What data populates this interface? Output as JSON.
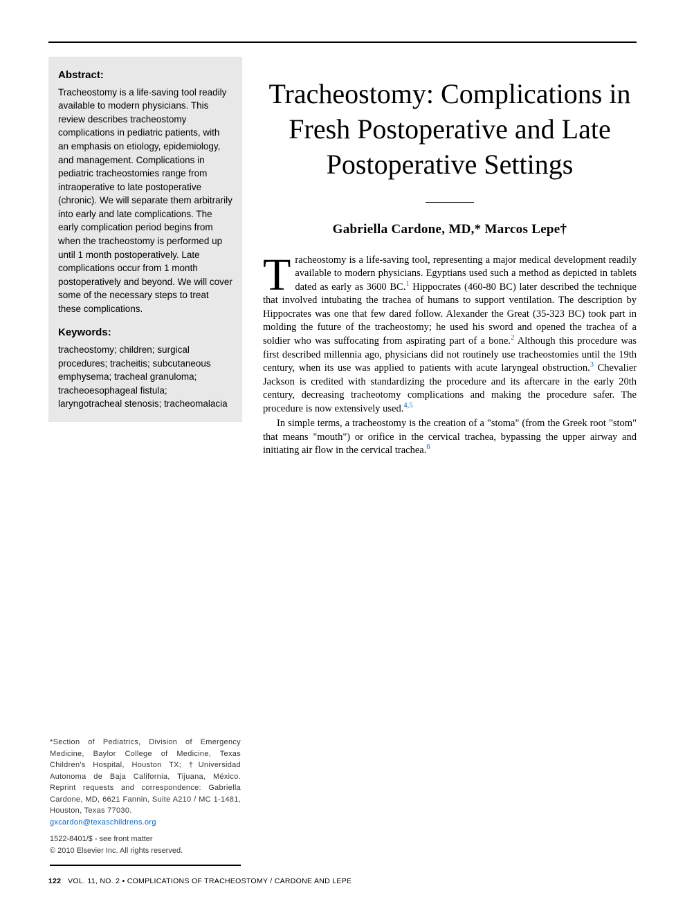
{
  "sidebar": {
    "abstract_heading": "Abstract:",
    "abstract_text": "Tracheostomy is a life-saving tool readily available to modern physicians. This review describes tracheostomy complications in pediatric patients, with an emphasis on etiology, epidemiology, and management. Complications in pediatric tracheostomies range from intraoperative to late postoperative (chronic). We will separate them arbitrarily into early and late complications. The early complication period begins from when the tracheostomy is performed up until 1 month postoperatively. Late complications occur from 1 month postoperatively and beyond. We will cover some of the necessary steps to treat these complications.",
    "keywords_heading": "Keywords:",
    "keywords_text": "tracheostomy; children; surgical procedures; tracheitis; subcutaneous emphysema; tracheal granuloma; tracheoesophageal fistula; laryngotracheal stenosis; tracheomalacia",
    "affiliation_text": "*Section of Pediatrics, Division of Emergency Medicine, Baylor College of Medicine, Texas Children's Hospital, Houston TX; †Universidad Autonoma de Baja California, Tijuana, México.",
    "reprint_text": "Reprint requests and correspondence: Gabriella Cardone, MD, 6621 Fannin, Suite A210 / MC 1-1481, Houston, Texas 77030.",
    "email": "gxcardon@texaschildrens.org",
    "issn": "1522-8401/$ - see front matter",
    "copyright": "© 2010 Elsevier Inc. All rights reserved."
  },
  "main": {
    "title": "Tracheostomy: Complications in Fresh Postoperative and Late Postoperative Settings",
    "authors": "Gabriella Cardone, MD,* Marcos Lepe†",
    "dropcap": "T",
    "p1_after_drop": "racheostomy is a life-saving tool, representing a major medical development readily available to modern physicians. Egyptians used such a method as depicted in tablets dated as early as 3600 ",
    "p1_bc1": "BC",
    "p1_ref1": "1",
    "p1_after_ref1": " Hippocrates (460-80 ",
    "p1_bc2": "BC",
    "p1_after_bc2": ") later described the technique that involved intubating the trachea of humans to support ventilation. The description by Hippocrates was one that few dared follow. Alexander the Great (35-323 ",
    "p1_bc3": "BC",
    "p1_after_bc3": ") took part in molding the future of the tracheostomy; he used his sword and opened the trachea of a soldier who was suffocating from aspirating part of a bone.",
    "p1_ref2": "2",
    "p1_after_ref2": " Although this procedure was first described millennia ago, physicians did not routinely use tracheostomies until the 19th century, when its use was applied to patients with acute laryngeal obstruction.",
    "p1_ref3": "3",
    "p1_after_ref3": " Chevalier Jackson is credited with standardizing the procedure and its aftercare in the early 20th century, decreasing tracheotomy complications and making the procedure safer. The procedure is now extensively used.",
    "p1_ref45": "4,5",
    "p2_text": "In simple terms, a tracheostomy is the creation of a \"stoma\" (from the Greek root \"stom\" that means \"mouth\") or orifice in the cervical trachea, bypassing the upper airway and initiating air flow in the cervical trachea.",
    "p2_ref6": "6"
  },
  "footer": {
    "page_number": "122",
    "vol_issue": "VOL. 11, NO. 2 • COMPLICATIONS OF TRACHEOSTOMY / CARDONE AND LEPE"
  },
  "colors": {
    "sidebar_bg": "#e8e8e8",
    "link": "#0066cc",
    "text": "#000000"
  },
  "typography": {
    "body_font": "Georgia, serif",
    "sidebar_font": "Arial, sans-serif",
    "title_fontsize": 40,
    "author_fontsize": 19,
    "body_fontsize": 14.5,
    "sidebar_fontsize": 13.5,
    "affil_fontsize": 11,
    "footer_fontsize": 10.5
  }
}
